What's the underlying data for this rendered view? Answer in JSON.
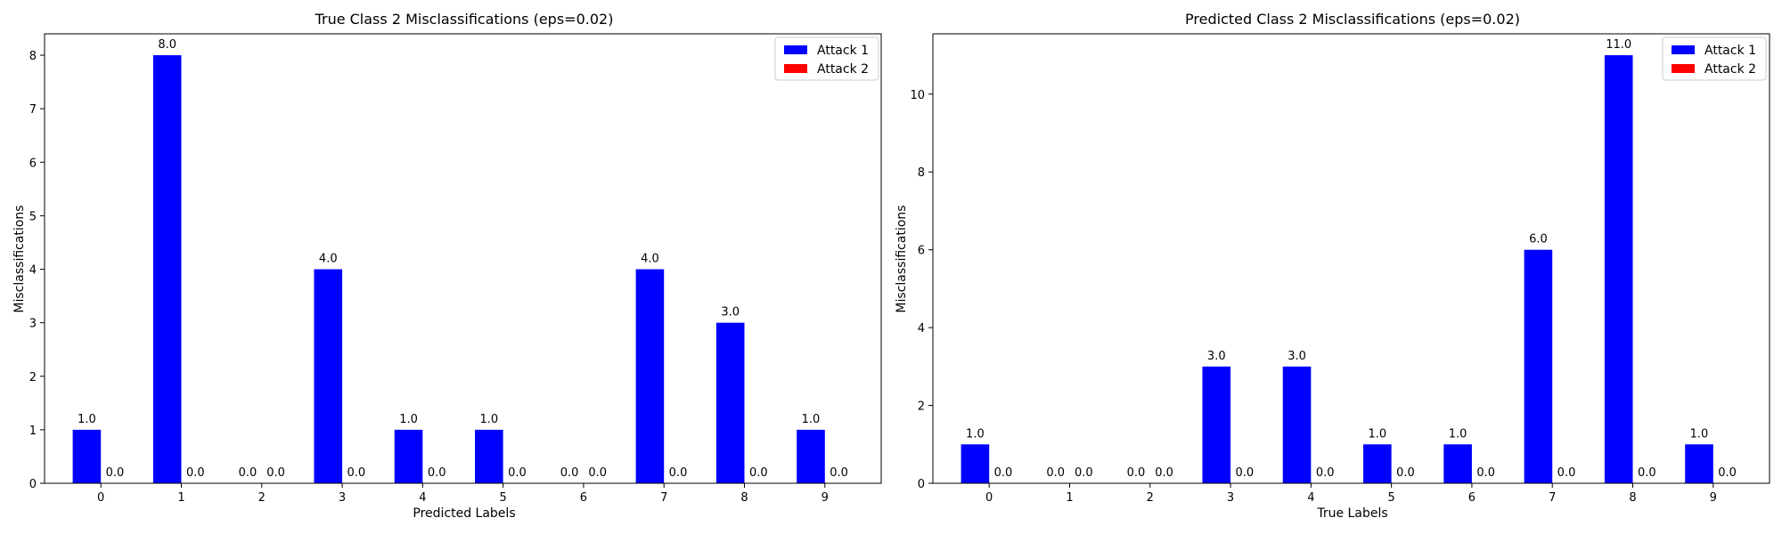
{
  "chart_data": [
    {
      "type": "bar",
      "title": "True Class 2 Misclassifications (eps=0.02)",
      "xlabel": "Predicted Labels",
      "ylabel": "Misclassifications",
      "categories": [
        "0",
        "1",
        "2",
        "3",
        "4",
        "5",
        "6",
        "7",
        "8",
        "9"
      ],
      "ylim": [
        0,
        8.4
      ],
      "yticks": [
        0,
        1,
        2,
        3,
        4,
        5,
        6,
        7,
        8
      ],
      "legend_position": "top-right",
      "series": [
        {
          "name": "Attack 1",
          "color": "#0000ff",
          "values": [
            1,
            8,
            0,
            4,
            1,
            1,
            0,
            4,
            3,
            1
          ],
          "labels": [
            "1.0",
            "8.0",
            "0.0",
            "4.0",
            "1.0",
            "1.0",
            "0.0",
            "4.0",
            "3.0",
            "1.0"
          ]
        },
        {
          "name": "Attack 2",
          "color": "#ff0000",
          "values": [
            0,
            0,
            0,
            0,
            0,
            0,
            0,
            0,
            0,
            0
          ],
          "labels": [
            "0.0",
            "0.0",
            "0.0",
            "0.0",
            "0.0",
            "0.0",
            "0.0",
            "0.0",
            "0.0",
            "0.0"
          ]
        }
      ]
    },
    {
      "type": "bar",
      "title": "Predicted Class 2 Misclassifications (eps=0.02)",
      "xlabel": "True Labels",
      "ylabel": "Misclassifications",
      "categories": [
        "0",
        "1",
        "2",
        "3",
        "4",
        "5",
        "6",
        "7",
        "8",
        "9"
      ],
      "ylim": [
        0,
        11.55
      ],
      "yticks": [
        0,
        2,
        4,
        6,
        8,
        10
      ],
      "legend_position": "top-right",
      "series": [
        {
          "name": "Attack 1",
          "color": "#0000ff",
          "values": [
            1,
            0,
            0,
            3,
            3,
            1,
            1,
            6,
            11,
            1
          ],
          "labels": [
            "1.0",
            "0.0",
            "0.0",
            "3.0",
            "3.0",
            "1.0",
            "1.0",
            "6.0",
            "11.0",
            "1.0"
          ]
        },
        {
          "name": "Attack 2",
          "color": "#ff0000",
          "values": [
            0,
            0,
            0,
            0,
            0,
            0,
            0,
            0,
            0,
            0
          ],
          "labels": [
            "0.0",
            "0.0",
            "0.0",
            "0.0",
            "0.0",
            "0.0",
            "0.0",
            "0.0",
            "0.0",
            "0.0"
          ]
        }
      ]
    }
  ]
}
